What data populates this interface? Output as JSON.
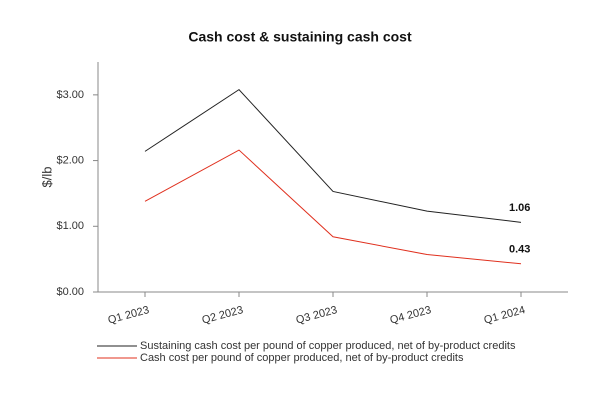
{
  "chart_data": {
    "type": "line",
    "title": "Cash cost & sustaining cash cost",
    "y_label": "$/lb",
    "categories": [
      "Q1 2023",
      "Q2 2023",
      "Q3 2023",
      "Q4 2023",
      "Q1 2024"
    ],
    "series": [
      {
        "name": "Sustaining cash cost per pound of copper produced, net of by-product credits",
        "color": "#222222",
        "values": [
          2.14,
          3.08,
          1.53,
          1.23,
          1.06
        ],
        "value_labels": [
          null,
          null,
          null,
          null,
          "1.06"
        ]
      },
      {
        "name": "Cash cost per pound of copper produced, net of by-product credits",
        "color": "#e0301e",
        "values": [
          1.38,
          2.16,
          0.84,
          0.57,
          0.43
        ],
        "value_labels": [
          null,
          null,
          null,
          null,
          "0.43"
        ]
      }
    ],
    "ylim": [
      0,
      3.5
    ],
    "yticks": [
      {
        "value": 0,
        "label": "$0.00"
      },
      {
        "value": 1,
        "label": "$1.00"
      },
      {
        "value": 2,
        "label": "$2.00"
      },
      {
        "value": 3,
        "label": "$3.00"
      }
    ],
    "grid": false,
    "legend": "bottom"
  }
}
